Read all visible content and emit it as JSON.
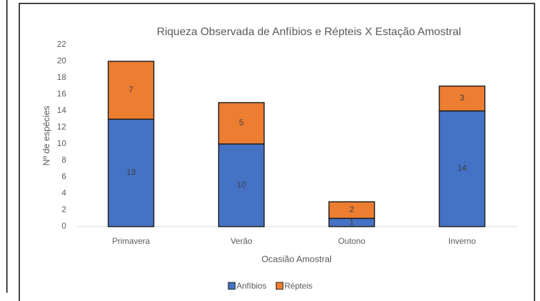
{
  "chart_data": {
    "type": "stacked_bar",
    "title": "Riqueza Observada de Anfíbios e Répteis X Estação Amostral",
    "x_label": "Ocasião Amostral",
    "y_label": "Nº de espécies",
    "categories": [
      "Primavera",
      "Verão",
      "Outono",
      "Inverno"
    ],
    "series": [
      {
        "name": "Anfíbios",
        "color": "#4472c4",
        "values": [
          13,
          10,
          1,
          14
        ]
      },
      {
        "name": "Répteis",
        "color": "#ed7d31",
        "values": [
          7,
          5,
          2,
          3
        ]
      }
    ],
    "ylim": [
      0,
      22
    ],
    "yticks": [
      0,
      2,
      4,
      6,
      8,
      10,
      12,
      14,
      16,
      18,
      20,
      22
    ],
    "legend": "bottom"
  }
}
